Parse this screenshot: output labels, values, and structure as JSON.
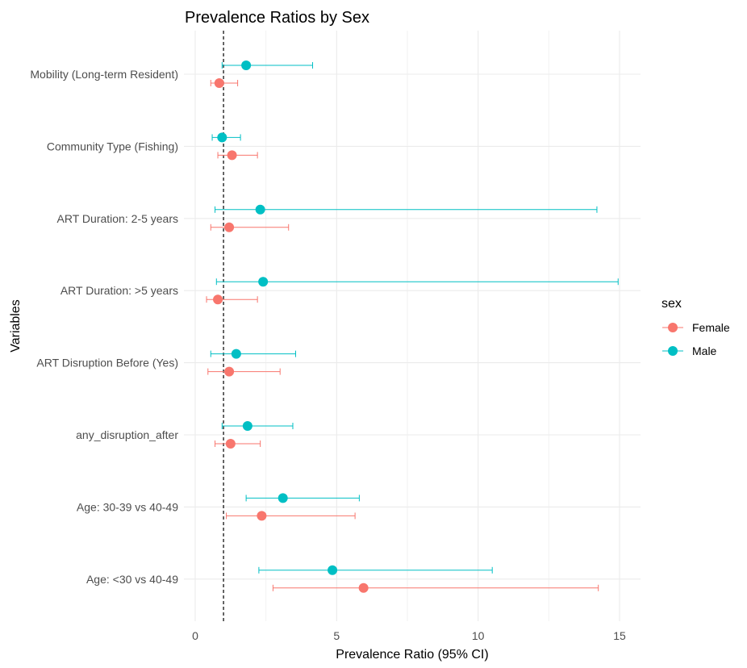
{
  "chart_data": {
    "type": "scatter",
    "title": "Prevalence Ratios by Sex",
    "xlabel": "Prevalence Ratio (95% CI)",
    "ylabel": "Variables",
    "xlim": [
      -0.6,
      15.7
    ],
    "xticks": [
      0,
      5,
      10,
      15
    ],
    "xtick_labels": [
      "0",
      "5",
      "10",
      "15"
    ],
    "reference_line_x": 1,
    "grid": true,
    "legend_position": "right",
    "legend_title": "sex",
    "categories": [
      "Mobility (Long-term Resident)",
      "Community Type (Fishing)",
      "ART Duration: 2-5 years",
      "ART Duration: >5 years",
      "ART Disruption Before (Yes)",
      "any_disruption_after",
      "Age: 30-39 vs 40-49",
      "Age: <30 vs 40-49"
    ],
    "series": [
      {
        "name": "Female",
        "color": "#F8766D",
        "points": [
          {
            "category": "Mobility (Long-term Resident)",
            "estimate": 0.85,
            "lower": 0.55,
            "upper": 1.5
          },
          {
            "category": "Community Type (Fishing)",
            "estimate": 1.3,
            "lower": 0.8,
            "upper": 2.2
          },
          {
            "category": "ART Duration: 2-5 years",
            "estimate": 1.2,
            "lower": 0.55,
            "upper": 3.3
          },
          {
            "category": "ART Duration: >5 years",
            "estimate": 0.8,
            "lower": 0.4,
            "upper": 2.2
          },
          {
            "category": "ART Disruption Before (Yes)",
            "estimate": 1.2,
            "lower": 0.45,
            "upper": 3.0
          },
          {
            "category": "any_disruption_after",
            "estimate": 1.25,
            "lower": 0.7,
            "upper": 2.3
          },
          {
            "category": "Age: 30-39 vs 40-49",
            "estimate": 2.35,
            "lower": 1.1,
            "upper": 5.65
          },
          {
            "category": "Age: <30 vs 40-49",
            "estimate": 5.95,
            "lower": 2.75,
            "upper": 14.25
          }
        ]
      },
      {
        "name": "Male",
        "color": "#00BFC4",
        "points": [
          {
            "category": "Mobility (Long-term Resident)",
            "estimate": 1.8,
            "lower": 0.95,
            "upper": 4.15
          },
          {
            "category": "Community Type (Fishing)",
            "estimate": 0.95,
            "lower": 0.6,
            "upper": 1.6
          },
          {
            "category": "ART Duration: 2-5 years",
            "estimate": 2.3,
            "lower": 0.7,
            "upper": 14.2
          },
          {
            "category": "ART Duration: >5 years",
            "estimate": 2.4,
            "lower": 0.75,
            "upper": 14.95
          },
          {
            "category": "ART Disruption Before (Yes)",
            "estimate": 1.45,
            "lower": 0.55,
            "upper": 3.55
          },
          {
            "category": "any_disruption_after",
            "estimate": 1.85,
            "lower": 0.95,
            "upper": 3.45
          },
          {
            "category": "Age: 30-39 vs 40-49",
            "estimate": 3.1,
            "lower": 1.8,
            "upper": 5.8
          },
          {
            "category": "Age: <30 vs 40-49",
            "estimate": 4.85,
            "lower": 2.25,
            "upper": 10.5
          }
        ]
      }
    ]
  }
}
